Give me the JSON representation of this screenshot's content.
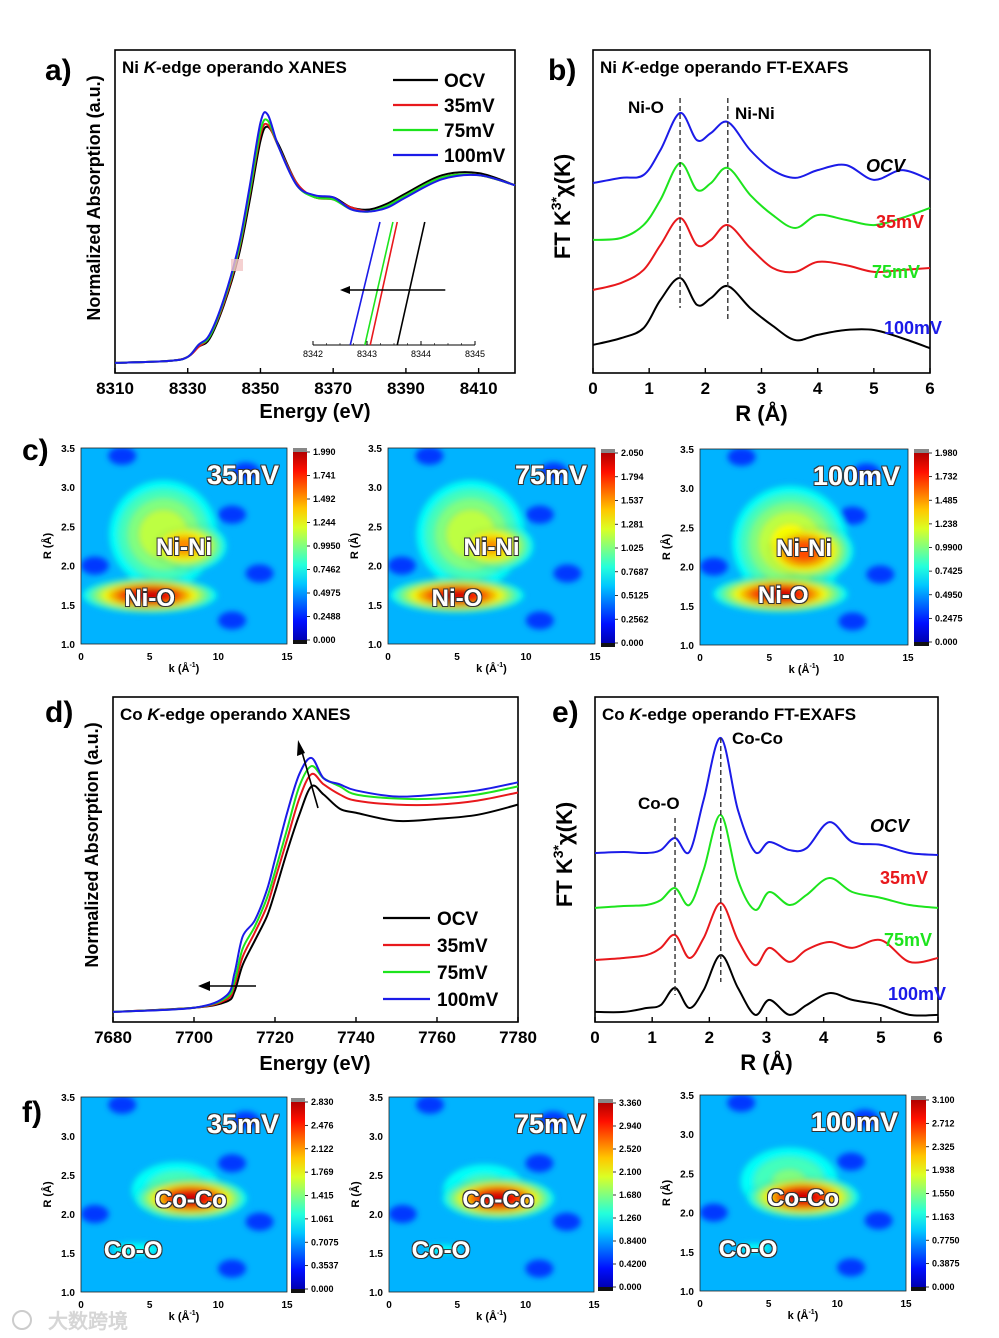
{
  "figure": {
    "panel_labels": [
      "a)",
      "b)",
      "c)",
      "d)",
      "e)",
      "f)"
    ],
    "watermark": "大数跨境"
  },
  "colors": {
    "OCV": "#000000",
    "35mV": "#e8181c",
    "75mV": "#1de41d",
    "100mV": "#1b1be8"
  },
  "chart_data": [
    {
      "id": "a",
      "type": "line",
      "title_parts": [
        "Ni ",
        "K",
        "-edge operando XANES"
      ],
      "xlabel": "Energy (eV)",
      "ylabel": "Normalized Absorption (a.u.)",
      "xlim": [
        8310,
        8420
      ],
      "ylim": [
        0,
        1.6
      ],
      "xticks": [
        8310,
        8330,
        8350,
        8370,
        8390,
        8410
      ],
      "legend": [
        "OCV",
        "35mV",
        "75mV",
        "100mV"
      ],
      "legend_position": "top-right",
      "x": [
        8310,
        8325,
        8330,
        8333,
        8336,
        8340,
        8344,
        8347,
        8350,
        8352,
        8355,
        8360,
        8365,
        8370,
        8375,
        8380,
        8385,
        8390,
        8400,
        8410,
        8420
      ],
      "series": [
        {
          "name": "OCV",
          "values": [
            0.05,
            0.06,
            0.08,
            0.13,
            0.17,
            0.34,
            0.58,
            0.85,
            1.15,
            1.22,
            1.13,
            0.94,
            0.87,
            0.87,
            0.82,
            0.81,
            0.84,
            0.89,
            0.98,
            0.99,
            0.93
          ]
        },
        {
          "name": "35mV",
          "values": [
            0.05,
            0.06,
            0.08,
            0.13,
            0.18,
            0.35,
            0.6,
            0.88,
            1.18,
            1.23,
            1.12,
            0.94,
            0.87,
            0.86,
            0.82,
            0.8,
            0.83,
            0.88,
            0.97,
            0.98,
            0.93
          ]
        },
        {
          "name": "75mV",
          "values": [
            0.05,
            0.06,
            0.08,
            0.14,
            0.18,
            0.36,
            0.61,
            0.89,
            1.2,
            1.25,
            1.12,
            0.93,
            0.87,
            0.86,
            0.81,
            0.8,
            0.83,
            0.88,
            0.97,
            0.98,
            0.93
          ]
        },
        {
          "name": "100mV",
          "values": [
            0.05,
            0.06,
            0.08,
            0.14,
            0.19,
            0.37,
            0.63,
            0.92,
            1.24,
            1.28,
            1.12,
            0.93,
            0.88,
            0.87,
            0.81,
            0.8,
            0.82,
            0.87,
            0.96,
            0.98,
            0.93
          ]
        }
      ],
      "inset": {
        "xlim": [
          8342,
          8345
        ],
        "xticks": [
          8342,
          8343,
          8344,
          8345
        ],
        "lines": [
          {
            "name": "OCV",
            "x_bottom": 8343.56,
            "x_top": 8344.07
          },
          {
            "name": "35mV",
            "x_bottom": 8343.06,
            "x_top": 8343.56
          },
          {
            "name": "75mV",
            "x_bottom": 8342.96,
            "x_top": 8343.48
          },
          {
            "name": "100mV",
            "x_bottom": 8342.69,
            "x_top": 8343.24
          }
        ],
        "arrow": {
          "from": 8344.45,
          "to": 8342.5,
          "direction": "left"
        }
      }
    },
    {
      "id": "b",
      "type": "line",
      "title_parts": [
        "Ni ",
        "K",
        "-edge operando FT-EXAFS"
      ],
      "xlabel": "R (Å)",
      "ylabel_base": "FT K",
      "ylabel_sup": "3*",
      "ylabel_tail": "χ(K)",
      "xlim": [
        0,
        6
      ],
      "ylim": [
        0,
        10
      ],
      "xticks": [
        0,
        1,
        2,
        3,
        4,
        5,
        6
      ],
      "x": [
        0,
        0.5,
        0.9,
        1.2,
        1.55,
        1.85,
        2.1,
        2.4,
        2.8,
        3.2,
        3.6,
        4.0,
        4.5,
        5.0,
        5.5,
        6.0
      ],
      "series": [
        {
          "name": "OCV",
          "values": [
            0.87,
            1.08,
            1.39,
            2.26,
            2.94,
            2.11,
            2.32,
            2.69,
            2.01,
            1.46,
            1.02,
            1.18,
            1.33,
            1.33,
            1.08,
            0.77
          ]
        },
        {
          "name": "35mV",
          "values": [
            2.57,
            2.79,
            3.19,
            3.96,
            4.8,
            3.96,
            4.12,
            4.58,
            3.87,
            3.25,
            3.13,
            3.44,
            3.34,
            3.13,
            3.19,
            3.25
          ]
        },
        {
          "name": "75mV",
          "values": [
            4.12,
            4.18,
            4.58,
            5.36,
            6.5,
            5.67,
            5.88,
            6.35,
            5.51,
            4.89,
            4.49,
            4.89,
            4.74,
            4.58,
            4.8,
            5.11
          ]
        },
        {
          "name": "100mV",
          "values": [
            5.88,
            6.04,
            6.13,
            6.9,
            8.05,
            7.21,
            7.43,
            7.77,
            6.9,
            6.28,
            6.04,
            6.28,
            6.44,
            5.98,
            6.28,
            5.98
          ]
        }
      ],
      "annotations": [
        {
          "text": "Ni-O",
          "R": 1.55
        },
        {
          "text": "Ni-Ni",
          "R": 2.4
        }
      ]
    },
    {
      "id": "c",
      "type": "heatmap",
      "xlabel": "k (Å",
      "xlabel_sup": "-1",
      "xlabel_tail": ")",
      "ylabel": "R (Å)",
      "xlim": [
        0,
        15
      ],
      "ylim": [
        1.0,
        3.5
      ],
      "xticks": [
        0,
        5,
        10,
        15
      ],
      "yticks": [
        "1.0",
        "1.5",
        "2.0",
        "2.5",
        "3.0",
        "3.5"
      ],
      "maps": [
        {
          "label": "35mV",
          "colorbar": [
            "1.990",
            "1.741",
            "1.492",
            "1.244",
            "0.9950",
            "0.7462",
            "0.4975",
            "0.2488",
            "0.000"
          ],
          "peaks": [
            {
              "text": "Ni-Ni",
              "k": 7.5,
              "R": 2.25
            },
            {
              "text": "Ni-O",
              "k": 5,
              "R": 1.6
            }
          ],
          "blobs": [
            {
              "k": 6,
              "R": 2.4,
              "sk": 4,
              "sR": 0.7,
              "amp": 0.62
            },
            {
              "k": 7.5,
              "R": 2.25,
              "sk": 2.6,
              "sR": 0.28,
              "amp": 0.78
            },
            {
              "k": 5,
              "R": 1.62,
              "sk": 3.6,
              "sR": 0.17,
              "amp": 0.97
            }
          ]
        },
        {
          "label": "75mV",
          "colorbar": [
            "2.050",
            "1.794",
            "1.537",
            "1.281",
            "1.025",
            "0.7687",
            "0.5125",
            "0.2562",
            "0.000"
          ],
          "peaks": [
            {
              "text": "Ni-Ni",
              "k": 7.5,
              "R": 2.25
            },
            {
              "text": "Ni-O",
              "k": 5,
              "R": 1.6
            }
          ],
          "blobs": [
            {
              "k": 6,
              "R": 2.4,
              "sk": 4,
              "sR": 0.7,
              "amp": 0.62
            },
            {
              "k": 7.5,
              "R": 2.25,
              "sk": 2.6,
              "sR": 0.28,
              "amp": 0.76
            },
            {
              "k": 5,
              "R": 1.62,
              "sk": 3.6,
              "sR": 0.17,
              "amp": 0.95
            }
          ]
        },
        {
          "label": "100mV",
          "colorbar": [
            "1.980",
            "1.732",
            "1.485",
            "1.238",
            "0.9900",
            "0.7425",
            "0.4950",
            "0.2475",
            "0.000"
          ],
          "peaks": [
            {
              "text": "Ni-Ni",
              "k": 7.5,
              "R": 2.25
            },
            {
              "text": "Ni-O",
              "k": 6,
              "R": 1.65
            }
          ],
          "blobs": [
            {
              "k": 6.5,
              "R": 2.3,
              "sk": 4,
              "sR": 0.7,
              "amp": 0.66
            },
            {
              "k": 7.5,
              "R": 2.2,
              "sk": 2.8,
              "sR": 0.32,
              "amp": 0.86
            },
            {
              "k": 5.8,
              "R": 1.65,
              "sk": 3.6,
              "sR": 0.18,
              "amp": 0.95
            }
          ]
        }
      ]
    },
    {
      "id": "d",
      "type": "line",
      "title_parts": [
        "Co ",
        "K",
        "-edge operando XANES"
      ],
      "xlabel": "Energy (eV)",
      "ylabel": "Normalized Absorption (a.u.)",
      "xlim": [
        7680,
        7780
      ],
      "ylim": [
        0,
        1.6
      ],
      "xticks": [
        7680,
        7700,
        7720,
        7740,
        7760,
        7780
      ],
      "legend": [
        "OCV",
        "35mV",
        "75mV",
        "100mV"
      ],
      "legend_position": "bottom-right",
      "x": [
        7680,
        7700,
        7708,
        7710,
        7712,
        7715,
        7718,
        7720,
        7723,
        7726,
        7729,
        7732,
        7736,
        7740,
        7750,
        7760,
        7770,
        7780
      ],
      "series": [
        {
          "name": "OCV",
          "values": [
            0.05,
            0.07,
            0.1,
            0.15,
            0.28,
            0.4,
            0.52,
            0.64,
            0.84,
            1.02,
            1.16,
            1.12,
            1.05,
            1.03,
            0.99,
            1.0,
            1.02,
            1.07
          ]
        },
        {
          "name": "35mV",
          "values": [
            0.05,
            0.07,
            0.11,
            0.18,
            0.32,
            0.44,
            0.57,
            0.7,
            0.9,
            1.1,
            1.22,
            1.17,
            1.12,
            1.09,
            1.07,
            1.07,
            1.09,
            1.13
          ]
        },
        {
          "name": "75mV",
          "values": [
            0.05,
            0.07,
            0.12,
            0.2,
            0.36,
            0.47,
            0.61,
            0.74,
            0.95,
            1.16,
            1.26,
            1.2,
            1.16,
            1.12,
            1.1,
            1.1,
            1.12,
            1.16
          ]
        },
        {
          "name": "100mV",
          "values": [
            0.05,
            0.07,
            0.13,
            0.24,
            0.42,
            0.5,
            0.65,
            0.8,
            1.03,
            1.22,
            1.3,
            1.2,
            1.17,
            1.14,
            1.11,
            1.12,
            1.14,
            1.18
          ]
        }
      ],
      "arrows": [
        {
          "direction": "up"
        },
        {
          "direction": "left"
        }
      ]
    },
    {
      "id": "e",
      "type": "line",
      "title_parts": [
        "Co ",
        "K",
        "-edge operando FT-EXAFS"
      ],
      "xlabel": "R (Å)",
      "ylabel_base": "FT K",
      "ylabel_sup": "3*",
      "ylabel_tail": "χ(K)",
      "xlim": [
        0,
        6
      ],
      "ylim": [
        0,
        10
      ],
      "xticks": [
        0,
        1,
        2,
        3,
        4,
        5,
        6
      ],
      "x": [
        0,
        0.5,
        0.9,
        1.15,
        1.4,
        1.65,
        1.9,
        2.2,
        2.5,
        2.8,
        3.05,
        3.4,
        3.7,
        4.1,
        4.5,
        5.0,
        5.5,
        6.0
      ],
      "series": [
        {
          "name": "OCV",
          "values": [
            0.31,
            0.31,
            0.43,
            0.52,
            1.05,
            0.43,
            0.98,
            2.06,
            1.05,
            0.22,
            0.68,
            0.22,
            0.52,
            0.89,
            0.68,
            0.52,
            0.22,
            0.22
          ]
        },
        {
          "name": "35mV",
          "values": [
            1.91,
            1.97,
            2.06,
            2.28,
            2.68,
            1.97,
            2.58,
            3.66,
            2.52,
            1.75,
            2.28,
            1.85,
            2.22,
            2.46,
            2.28,
            2.52,
            1.85,
            1.97
          ]
        },
        {
          "name": "75mV",
          "values": [
            3.51,
            3.57,
            3.6,
            3.75,
            4.12,
            3.6,
            4.68,
            6.37,
            4.37,
            3.45,
            4.0,
            3.6,
            3.91,
            4.43,
            4.0,
            3.82,
            3.6,
            3.51
          ]
        },
        {
          "name": "100mV",
          "values": [
            5.2,
            5.23,
            5.2,
            5.29,
            5.66,
            5.23,
            6.83,
            8.74,
            6.52,
            5.23,
            5.54,
            5.29,
            5.35,
            6.15,
            5.54,
            5.45,
            5.2,
            5.14
          ]
        }
      ],
      "annotations": [
        {
          "text": "Co-O",
          "R": 1.4
        },
        {
          "text": "Co-Co",
          "R": 2.2
        }
      ]
    },
    {
      "id": "f",
      "type": "heatmap",
      "xlabel": "k (Å",
      "xlabel_sup": "-1",
      "xlabel_tail": ")",
      "ylabel": "R (Å)",
      "xlim": [
        0,
        15
      ],
      "ylim": [
        1.0,
        3.5
      ],
      "xticks": [
        0,
        5,
        10,
        15
      ],
      "yticks": [
        "1.0",
        "1.5",
        "2.0",
        "2.5",
        "3.0",
        "3.5"
      ],
      "maps": [
        {
          "label": "35mV",
          "colorbar": [
            "2.830",
            "2.476",
            "2.122",
            "1.769",
            "1.415",
            "1.061",
            "0.7075",
            "0.3537",
            "0.000"
          ],
          "peaks": [
            {
              "text": "Co-Co",
              "k": 8,
              "R": 2.2
            },
            {
              "text": "Co-O",
              "k": 3.8,
              "R": 1.55
            }
          ],
          "blobs": [
            {
              "k": 7,
              "R": 2.3,
              "sk": 4.5,
              "sR": 0.5,
              "amp": 0.5
            },
            {
              "k": 4,
              "R": 1.55,
              "sk": 4,
              "sR": 0.18,
              "amp": 0.42
            },
            {
              "k": 8,
              "R": 2.2,
              "sk": 3,
              "sR": 0.2,
              "amp": 0.97
            }
          ]
        },
        {
          "label": "75mV",
          "colorbar": [
            "3.360",
            "2.940",
            "2.520",
            "2.100",
            "1.680",
            "1.260",
            "0.8400",
            "0.4200",
            "0.000"
          ],
          "peaks": [
            {
              "text": "Co-Co",
              "k": 8,
              "R": 2.2
            },
            {
              "text": "Co-O",
              "k": 3.8,
              "R": 1.55
            }
          ],
          "blobs": [
            {
              "k": 7,
              "R": 2.3,
              "sk": 4.5,
              "sR": 0.5,
              "amp": 0.48
            },
            {
              "k": 4,
              "R": 1.55,
              "sk": 4,
              "sR": 0.18,
              "amp": 0.4
            },
            {
              "k": 8,
              "R": 2.2,
              "sk": 3,
              "sR": 0.2,
              "amp": 0.97
            }
          ]
        },
        {
          "label": "100mV",
          "colorbar": [
            "3.100",
            "2.712",
            "2.325",
            "1.938",
            "1.550",
            "1.163",
            "0.7750",
            "0.3875",
            "0.000"
          ],
          "peaks": [
            {
              "text": "Co-Co",
              "k": 7.5,
              "R": 2.2
            },
            {
              "text": "Co-O",
              "k": 3.5,
              "R": 1.55
            }
          ],
          "blobs": [
            {
              "k": 6.5,
              "R": 2.4,
              "sk": 4.5,
              "sR": 0.55,
              "amp": 0.52
            },
            {
              "k": 4,
              "R": 1.55,
              "sk": 4,
              "sR": 0.18,
              "amp": 0.4
            },
            {
              "k": 7.5,
              "R": 2.2,
              "sk": 3,
              "sR": 0.2,
              "amp": 0.97
            }
          ]
        }
      ]
    }
  ]
}
